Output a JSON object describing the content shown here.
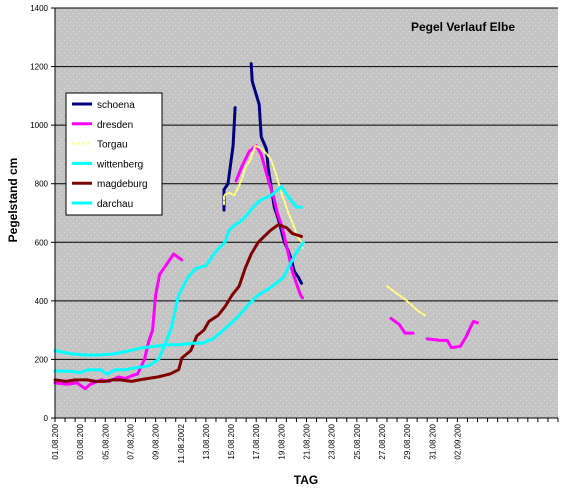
{
  "chart_data": {
    "type": "line",
    "title": "Pegel Verlauf Elbe",
    "xlabel": "TAG",
    "ylabel": "Pegelstand cm",
    "ylim": [
      0,
      1400
    ],
    "yticks": [
      0,
      200,
      400,
      600,
      800,
      1000,
      1200,
      1400
    ],
    "x_range": [
      0,
      50
    ],
    "grid": true,
    "legend_position": "upper-left",
    "plot_background": "#c0c0c0",
    "xtick_labels": [
      {
        "x": 0,
        "label": "01.08.200"
      },
      {
        "x": 2.5,
        "label": "03.08.200"
      },
      {
        "x": 5,
        "label": "05.08.200"
      },
      {
        "x": 7.5,
        "label": "07.08.200"
      },
      {
        "x": 10,
        "label": "09.08.200"
      },
      {
        "x": 12.5,
        "label": "11.08.2002"
      },
      {
        "x": 15,
        "label": "13.08.200"
      },
      {
        "x": 17.5,
        "label": "15.08.200"
      },
      {
        "x": 20,
        "label": "17.08.200"
      },
      {
        "x": 22.5,
        "label": "19.08.200"
      },
      {
        "x": 25,
        "label": "21.08.200"
      },
      {
        "x": 27.5,
        "label": "23.08.200"
      },
      {
        "x": 30,
        "label": "25.08.200"
      },
      {
        "x": 32.5,
        "label": "27.08.200"
      },
      {
        "x": 35,
        "label": "29.08.200"
      },
      {
        "x": 37.5,
        "label": "31.08.200"
      },
      {
        "x": 40,
        "label": "02.09.200"
      }
    ],
    "series": [
      {
        "name": "schoena",
        "color": "#000080",
        "dashed": false,
        "segments": [
          [
            [
              16.8,
              710
            ],
            [
              16.8,
              780
            ],
            [
              17.2,
              800
            ],
            [
              17.7,
              930
            ],
            [
              17.9,
              1060
            ]
          ],
          [
            [
              19.5,
              1210
            ],
            [
              19.6,
              1150
            ],
            [
              20.3,
              1070
            ],
            [
              20.5,
              960
            ],
            [
              21.0,
              920
            ],
            [
              21.2,
              850
            ],
            [
              21.8,
              720
            ],
            [
              22.2,
              680
            ],
            [
              22.5,
              640
            ],
            [
              22.8,
              600
            ],
            [
              23.2,
              570
            ],
            [
              23.5,
              540
            ],
            [
              23.8,
              500
            ],
            [
              24.2,
              480
            ],
            [
              24.5,
              460
            ]
          ]
        ]
      },
      {
        "name": "dresden",
        "color": "#ff00ff",
        "dashed": false,
        "segments": [
          [
            [
              0,
              120
            ],
            [
              1.2,
              115
            ],
            [
              2.2,
              120
            ],
            [
              3.0,
              100
            ],
            [
              3.5,
              115
            ],
            [
              4.6,
              130
            ],
            [
              5.4,
              125
            ],
            [
              6.3,
              140
            ],
            [
              7.0,
              135
            ],
            [
              7.7,
              145
            ],
            [
              8.2,
              150
            ],
            [
              8.9,
              200
            ],
            [
              9.3,
              260
            ],
            [
              9.7,
              300
            ],
            [
              10.0,
              420
            ],
            [
              10.4,
              490
            ],
            [
              11.0,
              520
            ],
            [
              11.8,
              560
            ],
            [
              12.6,
              540
            ]
          ],
          [
            [
              18.0,
              810
            ],
            [
              18.6,
              860
            ],
            [
              19.3,
              910
            ],
            [
              20.0,
              930
            ],
            [
              20.5,
              900
            ],
            [
              20.9,
              850
            ],
            [
              21.3,
              800
            ],
            [
              21.7,
              760
            ],
            [
              22.1,
              700
            ],
            [
              22.5,
              660
            ],
            [
              22.8,
              620
            ],
            [
              23.2,
              560
            ],
            [
              23.6,
              500
            ],
            [
              24.0,
              460
            ],
            [
              24.4,
              420
            ],
            [
              24.6,
              410
            ]
          ],
          [
            [
              33.4,
              340
            ],
            [
              34.2,
              320
            ],
            [
              34.8,
              290
            ],
            [
              35.6,
              290
            ]
          ],
          [
            [
              37.0,
              270
            ],
            [
              38.3,
              265
            ],
            [
              39.0,
              265
            ],
            [
              39.4,
              240
            ],
            [
              40.3,
              245
            ],
            [
              40.9,
              280
            ],
            [
              41.3,
              310
            ],
            [
              41.6,
              330
            ],
            [
              42.0,
              325
            ]
          ]
        ]
      },
      {
        "name": "Torgau",
        "color": "#ffff80",
        "dashed": true,
        "segments": [
          [
            [
              16.8,
              730
            ],
            [
              16.8,
              760
            ],
            [
              17.3,
              770
            ],
            [
              17.8,
              760
            ],
            [
              18.4,
              800
            ],
            [
              19.0,
              860
            ],
            [
              19.4,
              880
            ],
            [
              19.9,
              930
            ],
            [
              20.5,
              920
            ],
            [
              21.1,
              900
            ],
            [
              21.5,
              880
            ],
            [
              22.0,
              830
            ],
            [
              22.4,
              780
            ],
            [
              22.8,
              740
            ],
            [
              23.2,
              700
            ],
            [
              23.7,
              660
            ],
            [
              24.1,
              620
            ],
            [
              24.5,
              600
            ],
            [
              24.6,
              580
            ]
          ],
          [
            [
              33.0,
              450
            ],
            [
              33.8,
              430
            ],
            [
              34.6,
              410
            ],
            [
              35.3,
              390
            ],
            [
              36.1,
              365
            ],
            [
              36.8,
              350
            ]
          ]
        ]
      },
      {
        "name": "wittenberg",
        "color": "#00ffff",
        "dashed": false,
        "segments": [
          [
            [
              0,
              160
            ],
            [
              1.4,
              160
            ],
            [
              2.5,
              155
            ],
            [
              3.3,
              165
            ],
            [
              4.5,
              165
            ],
            [
              5.2,
              150
            ],
            [
              6.0,
              165
            ],
            [
              7.0,
              165
            ],
            [
              7.8,
              170
            ],
            [
              8.7,
              175
            ],
            [
              9.4,
              180
            ],
            [
              10.3,
              200
            ],
            [
              10.8,
              240
            ],
            [
              11.5,
              300
            ],
            [
              12.3,
              420
            ],
            [
              13.2,
              480
            ],
            [
              14.0,
              510
            ],
            [
              15.0,
              520
            ],
            [
              15.8,
              560
            ],
            [
              16.3,
              580
            ],
            [
              16.9,
              600
            ],
            [
              17.3,
              640
            ],
            [
              17.9,
              660
            ],
            [
              18.4,
              670
            ],
            [
              19.0,
              690
            ],
            [
              19.7,
              720
            ],
            [
              20.3,
              740
            ],
            [
              20.8,
              750
            ],
            [
              21.5,
              760
            ],
            [
              22.5,
              790
            ],
            [
              23.1,
              760
            ],
            [
              24.0,
              720
            ],
            [
              24.5,
              720
            ]
          ]
        ]
      },
      {
        "name": "magdeburg",
        "color": "#800000",
        "dashed": false,
        "segments": [
          [
            [
              0,
              130
            ],
            [
              1.1,
              125
            ],
            [
              2.0,
              130
            ],
            [
              3.2,
              130
            ],
            [
              4.0,
              125
            ],
            [
              5.0,
              125
            ],
            [
              5.7,
              130
            ],
            [
              6.5,
              130
            ],
            [
              7.6,
              125
            ],
            [
              8.4,
              130
            ],
            [
              9.2,
              135
            ],
            [
              10.2,
              140
            ],
            [
              11.4,
              150
            ],
            [
              12.3,
              165
            ],
            [
              12.6,
              205
            ],
            [
              13.5,
              230
            ],
            [
              14.1,
              280
            ],
            [
              14.8,
              300
            ],
            [
              15.3,
              330
            ],
            [
              16.2,
              350
            ],
            [
              16.9,
              380
            ],
            [
              17.6,
              420
            ],
            [
              18.3,
              450
            ],
            [
              18.9,
              510
            ],
            [
              19.5,
              560
            ],
            [
              20.2,
              600
            ],
            [
              20.8,
              620
            ],
            [
              21.4,
              640
            ],
            [
              22.2,
              660
            ],
            [
              23.0,
              650
            ],
            [
              23.6,
              630
            ],
            [
              24.5,
              620
            ]
          ]
        ]
      },
      {
        "name": "darchau",
        "color": "#00ffff",
        "dashed": false,
        "segments": [
          [
            [
              0,
              230
            ],
            [
              1.5,
              220
            ],
            [
              3.0,
              215
            ],
            [
              4.5,
              215
            ],
            [
              6.0,
              220
            ],
            [
              7.5,
              230
            ],
            [
              8.7,
              240
            ],
            [
              10.0,
              245
            ],
            [
              11.2,
              250
            ],
            [
              12.4,
              250
            ],
            [
              13.7,
              255
            ],
            [
              14.6,
              255
            ],
            [
              15.7,
              270
            ],
            [
              16.4,
              290
            ],
            [
              17.4,
              320
            ],
            [
              18.3,
              350
            ],
            [
              19.3,
              390
            ],
            [
              20.2,
              420
            ],
            [
              21.2,
              440
            ],
            [
              22.0,
              460
            ],
            [
              22.7,
              480
            ],
            [
              23.3,
              520
            ],
            [
              23.9,
              560
            ],
            [
              24.3,
              580
            ],
            [
              24.7,
              600
            ]
          ]
        ]
      }
    ]
  }
}
